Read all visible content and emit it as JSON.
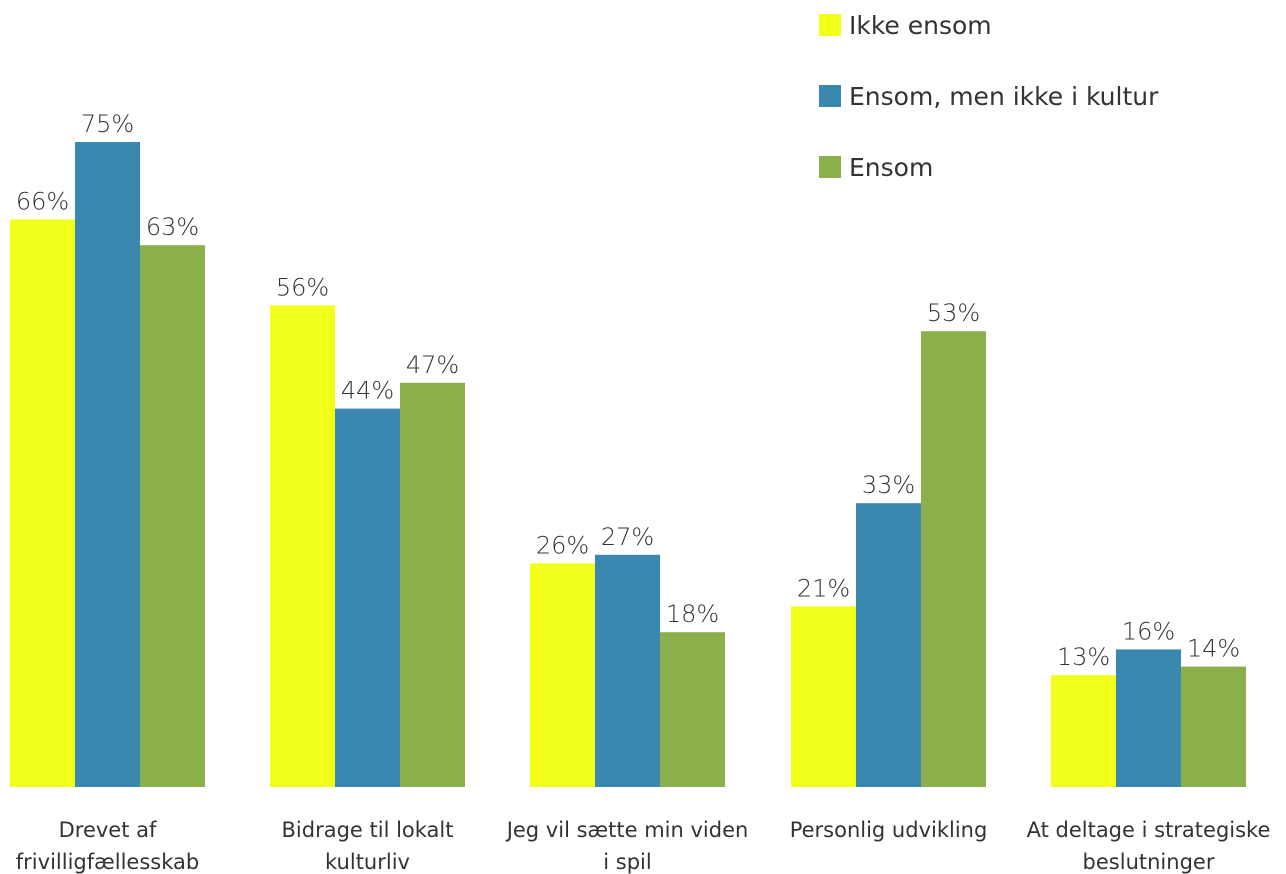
{
  "chart_data": {
    "type": "bar",
    "categories": [
      [
        "Drevet af",
        "frivilligfællesskab"
      ],
      [
        "Bidrage til lokalt",
        "kulturliv"
      ],
      [
        "Jeg vil sætte min viden",
        "i spil"
      ],
      [
        "Personlig udvikling"
      ],
      [
        "At deltage i strategiske",
        "beslutninger"
      ]
    ],
    "series": [
      {
        "name": "Ikke ensom",
        "color": "#f2ff1a",
        "values": [
          66,
          56,
          26,
          21,
          13
        ]
      },
      {
        "name": "Ensom, men ikke i kultur",
        "color": "#3a87b0",
        "values": [
          75,
          44,
          27,
          33,
          16
        ]
      },
      {
        "name": "Ensom",
        "color": "#8baf4a",
        "values": [
          63,
          47,
          18,
          53,
          14
        ]
      }
    ],
    "value_suffix": "%",
    "ylim": [
      0,
      75
    ],
    "grid": false,
    "legend": "top-right",
    "title": "",
    "xlabel": "",
    "ylabel": ""
  }
}
